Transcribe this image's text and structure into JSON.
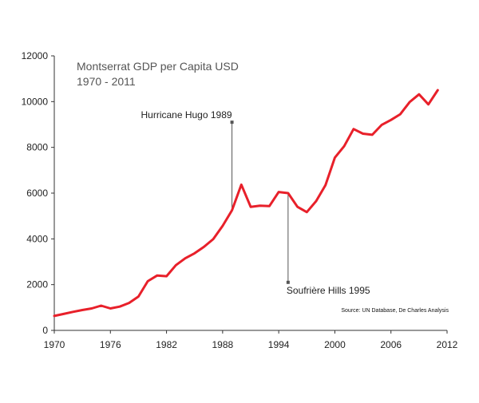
{
  "chart_data": {
    "type": "line",
    "title": "Montserrat GDP per Capita USD",
    "subtitle": "1970 - 2011",
    "source": "Source: UN Database, De Charles Analysis",
    "xlim": [
      1970,
      2012
    ],
    "ylim": [
      0,
      12000
    ],
    "x_ticks": [
      1970,
      1976,
      1982,
      1988,
      1994,
      2000,
      2006,
      2012
    ],
    "y_ticks": [
      0,
      2000,
      4000,
      6000,
      8000,
      10000,
      12000
    ],
    "grid": false,
    "line_color": "#e8202a",
    "series": [
      {
        "x": [
          1970,
          1971,
          1972,
          1973,
          1974,
          1975,
          1976,
          1977,
          1978,
          1979,
          1980,
          1981,
          1982,
          1983,
          1984,
          1985,
          1986,
          1987,
          1988,
          1989,
          1990,
          1991,
          1992,
          1993,
          1994,
          1995,
          1996,
          1997,
          1998,
          1999,
          2000,
          2001,
          2002,
          2003,
          2004,
          2005,
          2006,
          2007,
          2008,
          2009,
          2010,
          2011
        ],
        "values": [
          630,
          720,
          810,
          890,
          960,
          1080,
          960,
          1040,
          1200,
          1480,
          2150,
          2400,
          2370,
          2850,
          3150,
          3370,
          3650,
          3990,
          4570,
          5250,
          6370,
          5400,
          5450,
          5430,
          6050,
          6000,
          5400,
          5170,
          5650,
          6350,
          7550,
          8050,
          8800,
          8600,
          8550,
          8980,
          9200,
          9450,
          9980,
          10320,
          9880,
          10500
        ]
      }
    ],
    "annotations": [
      {
        "label": "Hurricane Hugo 1989",
        "x": 1989,
        "y_value": 5250,
        "y_label": 9100
      },
      {
        "label": "Soufrière Hills 1995",
        "x": 1995,
        "y_value": 6000,
        "y_label": 2100
      }
    ]
  }
}
